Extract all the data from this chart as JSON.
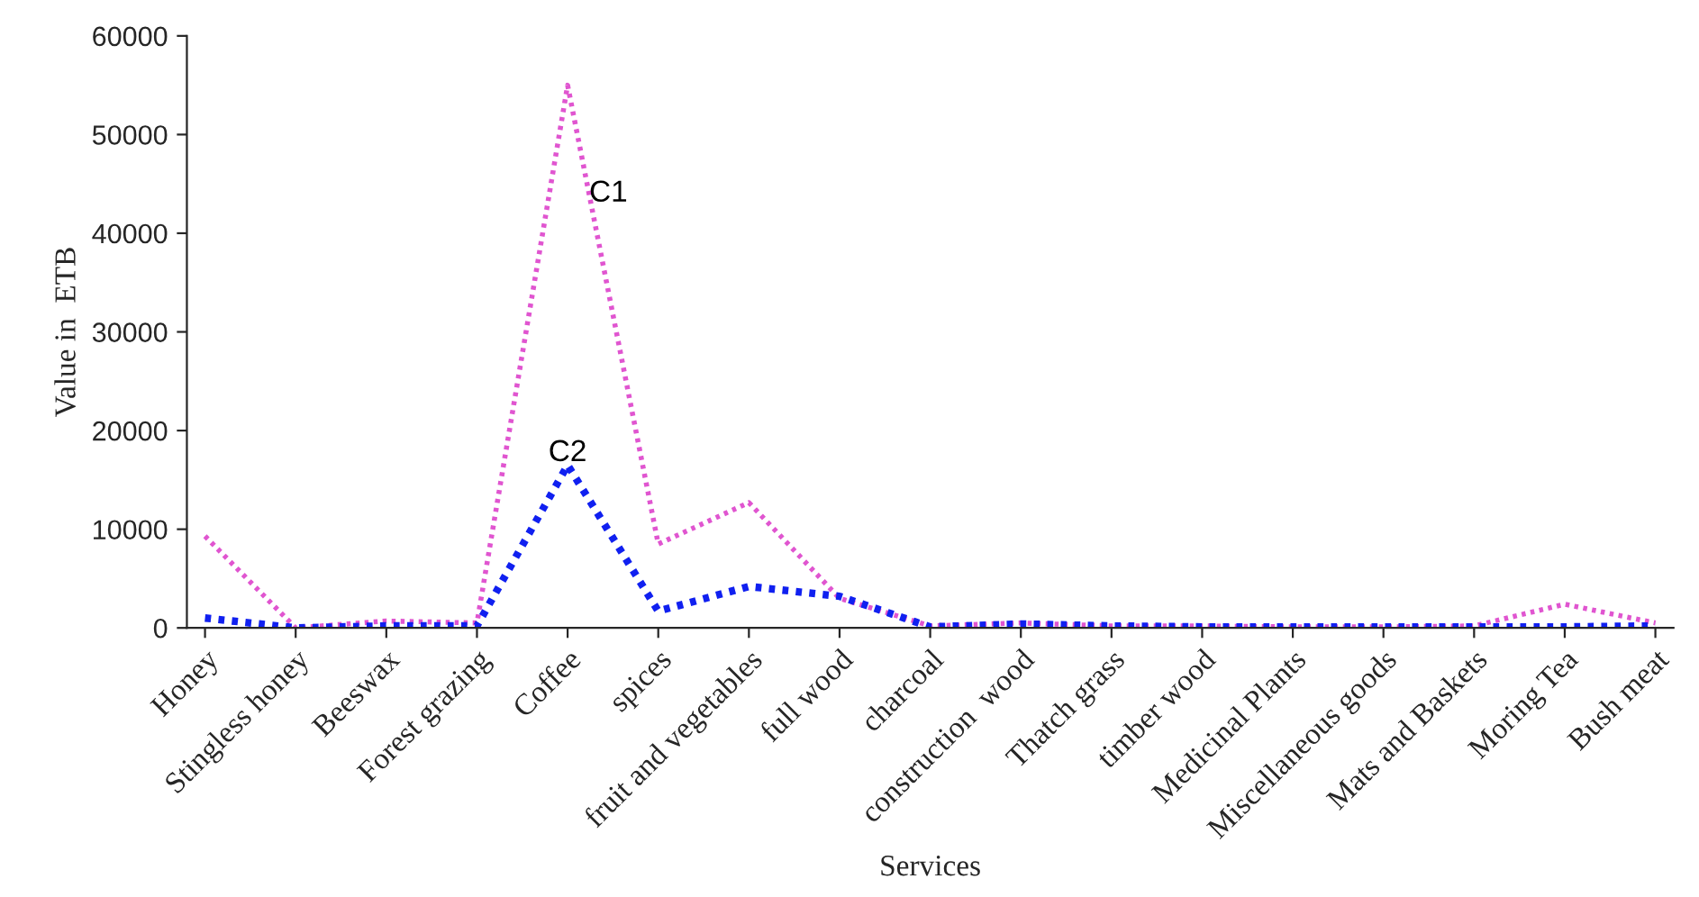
{
  "chart_data": {
    "type": "line",
    "xlabel": "Services",
    "ylabel": "Value in  ETB",
    "categories": [
      "Honey",
      "Stingless honey",
      "Beeswax",
      "Forest grazing",
      "Coffee",
      "spices",
      "fruit and vegetables",
      "full wood",
      "charcoal",
      "construction  wood",
      "Thatch grass",
      "timber wood",
      "Medicinal Plants",
      "Miscellaneous goods",
      "Mats and Baskets",
      "Moring Tea",
      "Bush meat"
    ],
    "series": [
      {
        "name": "C1",
        "color": "#e055d0",
        "line_style": "dotted",
        "values": [
          9300,
          0,
          700,
          500,
          55000,
          8500,
          12700,
          3000,
          200,
          500,
          200,
          200,
          100,
          100,
          200,
          2400,
          500
        ]
      },
      {
        "name": "C2",
        "color": "#1020f0",
        "line_style": "dotted",
        "values": [
          1000,
          0,
          200,
          200,
          16500,
          1700,
          4200,
          3200,
          100,
          400,
          200,
          100,
          100,
          100,
          100,
          100,
          200
        ]
      }
    ],
    "ylim": [
      0,
      60000
    ],
    "yticks": [
      0,
      10000,
      20000,
      30000,
      40000,
      50000,
      60000
    ],
    "grid": false,
    "legend": false,
    "marker": "none"
  }
}
